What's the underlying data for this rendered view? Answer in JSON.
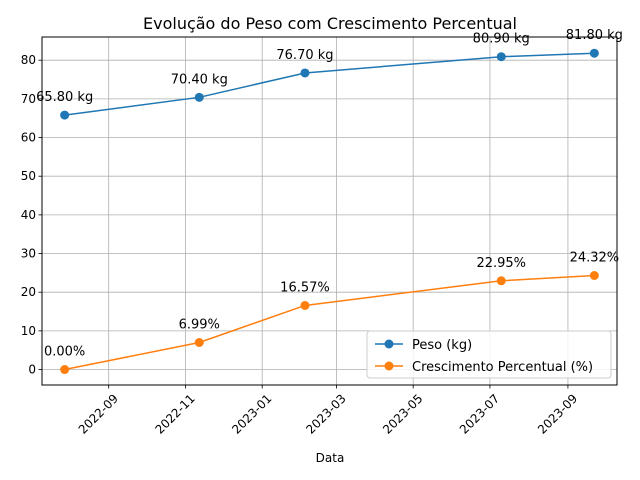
{
  "chart_data": {
    "type": "line",
    "title": "Evolução do Peso com Crescimento Percentual",
    "xlabel": "Data",
    "ylabel": "",
    "x": [
      "2022-07-28",
      "2022-11-12",
      "2023-02-04",
      "2023-07-10",
      "2023-09-22"
    ],
    "xlim": [
      "2022-07-10",
      "2023-10-10"
    ],
    "x_ticks": [
      "2022-09",
      "2022-11",
      "2023-01",
      "2023-03",
      "2023-05",
      "2023-07",
      "2023-09"
    ],
    "ylim": [
      -4,
      86
    ],
    "y_ticks": [
      "0",
      "10",
      "20",
      "30",
      "40",
      "50",
      "60",
      "70",
      "80"
    ],
    "grid": true,
    "legend_position": "lower-right",
    "series": [
      {
        "name": "Peso (kg)",
        "color": "#1f77b4",
        "values": [
          65.8,
          70.4,
          76.7,
          80.9,
          81.8
        ],
        "labels": [
          "65.80 kg",
          "70.40 kg",
          "76.70 kg",
          "80.90 kg",
          "81.80 kg"
        ]
      },
      {
        "name": "Crescimento Percentual (%)",
        "color": "#ff7f0e",
        "values": [
          0.0,
          6.99,
          16.57,
          22.95,
          24.32
        ],
        "labels": [
          "0.00%",
          "6.99%",
          "16.57%",
          "22.95%",
          "24.32%"
        ]
      }
    ]
  }
}
